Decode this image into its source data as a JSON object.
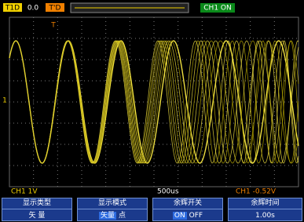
{
  "top_bar": {
    "tag_1": "T1D",
    "tag_2": "0.0",
    "tag_3": "T'D",
    "status": "CH1 ON"
  },
  "markers": {
    "trigger": "T",
    "channel": "1"
  },
  "status_bar": {
    "channel_scale": "CH1 1V",
    "time_base": "500us",
    "trigger_level": "CH1 -0.52V"
  },
  "menu": [
    {
      "title": "显示类型",
      "value": "矢 量"
    },
    {
      "title": "显示模式",
      "option_on": "矢量",
      "option_off": "点"
    },
    {
      "title": "余辉开关",
      "option_on": "ON",
      "option_off": "OFF"
    },
    {
      "title": "余辉时间",
      "value": "1.00s"
    }
  ]
}
